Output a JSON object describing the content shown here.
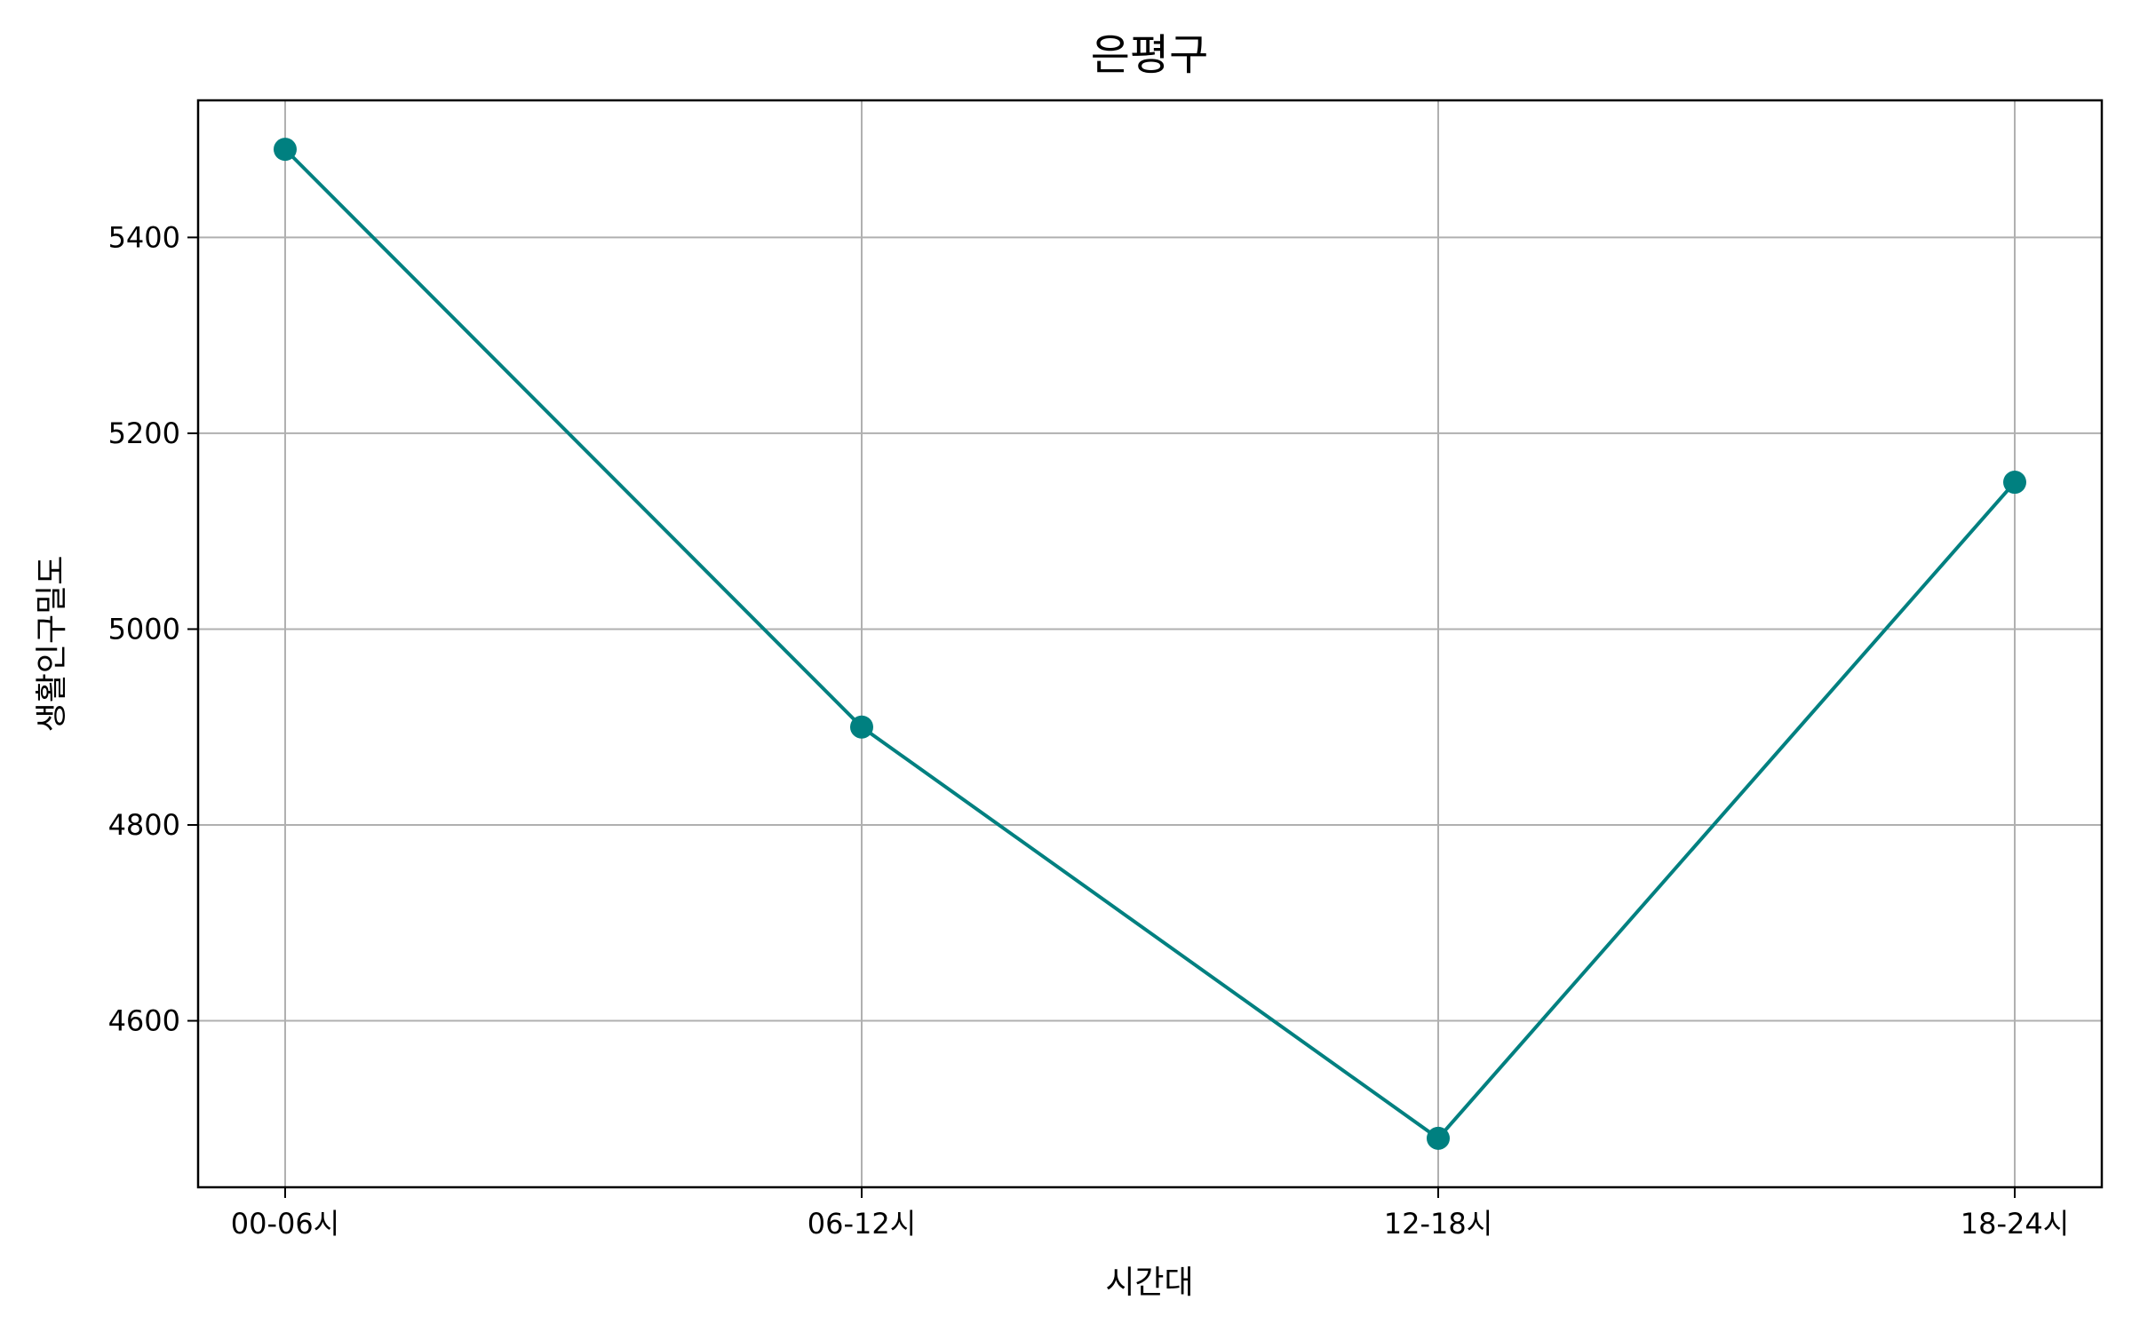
{
  "chart_data": {
    "type": "line",
    "title": "은평구",
    "xlabel": "시간대",
    "ylabel": "생활인구밀도",
    "categories": [
      "00-06시",
      "06-12시",
      "12-18시",
      "18-24시"
    ],
    "series": [
      {
        "values": [
          5490,
          4900,
          4480,
          5150
        ],
        "color": "#008080",
        "marker": "circle"
      }
    ],
    "yticks": [
      4600,
      4800,
      5000,
      5200,
      5400
    ],
    "ylim": [
      4430,
      5540
    ],
    "grid": true
  }
}
